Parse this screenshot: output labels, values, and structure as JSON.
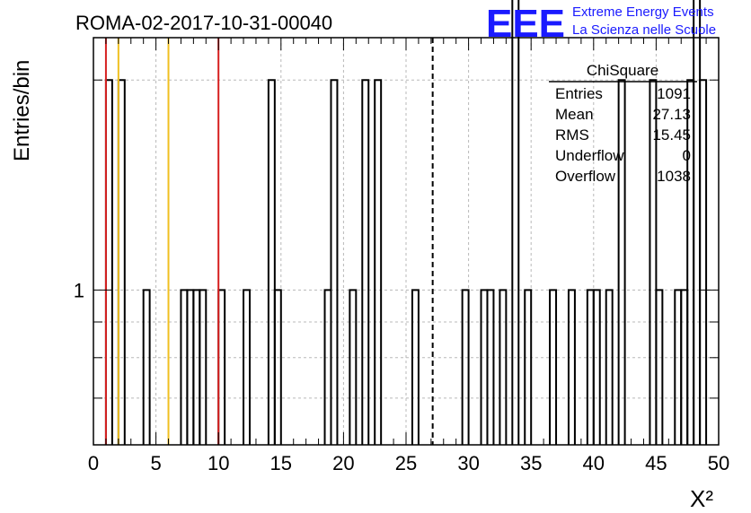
{
  "header": {
    "run_title": "ROMA-02-2017-10-31-00040",
    "logo_text": "EEE",
    "logo_line1": "Extreme Energy Events",
    "logo_line2": "La Scienza nelle Scuole",
    "logo_color": "#1a1aff"
  },
  "chart_data": {
    "type": "bar",
    "title": "ROMA-02-2017-10-31-00040",
    "xlabel": "X²",
    "ylabel": "Entries/bin",
    "xlim": [
      0,
      50
    ],
    "ylim": [
      0.6,
      2.3
    ],
    "y_scale": "log",
    "grid": true,
    "x_ticks": [
      0,
      5,
      10,
      15,
      20,
      25,
      30,
      35,
      40,
      45,
      50
    ],
    "y_tick_labels": [
      {
        "value": 1,
        "label": "1"
      }
    ],
    "bin_width": 0.5,
    "bins": [
      {
        "x0": 1.0,
        "v": 2
      },
      {
        "x0": 2.0,
        "v": 2
      },
      {
        "x0": 4.0,
        "v": 1
      },
      {
        "x0": 7.0,
        "v": 1
      },
      {
        "x0": 7.5,
        "v": 1
      },
      {
        "x0": 8.0,
        "v": 1
      },
      {
        "x0": 8.5,
        "v": 1
      },
      {
        "x0": 10.0,
        "v": 1
      },
      {
        "x0": 12.0,
        "v": 1
      },
      {
        "x0": 14.0,
        "v": 2
      },
      {
        "x0": 14.5,
        "v": 1
      },
      {
        "x0": 18.5,
        "v": 1
      },
      {
        "x0": 19.0,
        "v": 2
      },
      {
        "x0": 20.5,
        "v": 1
      },
      {
        "x0": 21.5,
        "v": 2
      },
      {
        "x0": 22.5,
        "v": 2
      },
      {
        "x0": 25.5,
        "v": 1
      },
      {
        "x0": 29.5,
        "v": 1
      },
      {
        "x0": 31.0,
        "v": 1
      },
      {
        "x0": 31.5,
        "v": 1
      },
      {
        "x0": 32.5,
        "v": 1
      },
      {
        "x0": 33.5,
        "v": 3
      },
      {
        "x0": 34.5,
        "v": 1
      },
      {
        "x0": 36.5,
        "v": 1
      },
      {
        "x0": 38.0,
        "v": 1
      },
      {
        "x0": 39.5,
        "v": 1
      },
      {
        "x0": 40.0,
        "v": 1
      },
      {
        "x0": 41.0,
        "v": 1
      },
      {
        "x0": 42.0,
        "v": 2
      },
      {
        "x0": 44.5,
        "v": 2
      },
      {
        "x0": 45.0,
        "v": 1
      },
      {
        "x0": 46.5,
        "v": 1
      },
      {
        "x0": 47.0,
        "v": 1
      },
      {
        "x0": 47.5,
        "v": 2
      },
      {
        "x0": 48.0,
        "v": 3
      },
      {
        "x0": 48.5,
        "v": 2
      }
    ],
    "marker_lines": [
      {
        "x": 1.0,
        "color": "#d62020",
        "style": "solid"
      },
      {
        "x": 2.0,
        "color": "#f0c020",
        "style": "solid"
      },
      {
        "x": 6.0,
        "color": "#f0c020",
        "style": "solid"
      },
      {
        "x": 10.0,
        "color": "#d62020",
        "style": "solid"
      },
      {
        "x": 27.13,
        "color": "#000000",
        "style": "dashed"
      }
    ]
  },
  "stats": {
    "title": "ChiSquare",
    "rows": [
      {
        "label": "Entries",
        "value": "1091"
      },
      {
        "label": "Mean",
        "value": "27.13"
      },
      {
        "label": "RMS",
        "value": "15.45"
      },
      {
        "label": "Underflow",
        "value": "0"
      },
      {
        "label": "Overflow",
        "value": "1038"
      }
    ]
  }
}
